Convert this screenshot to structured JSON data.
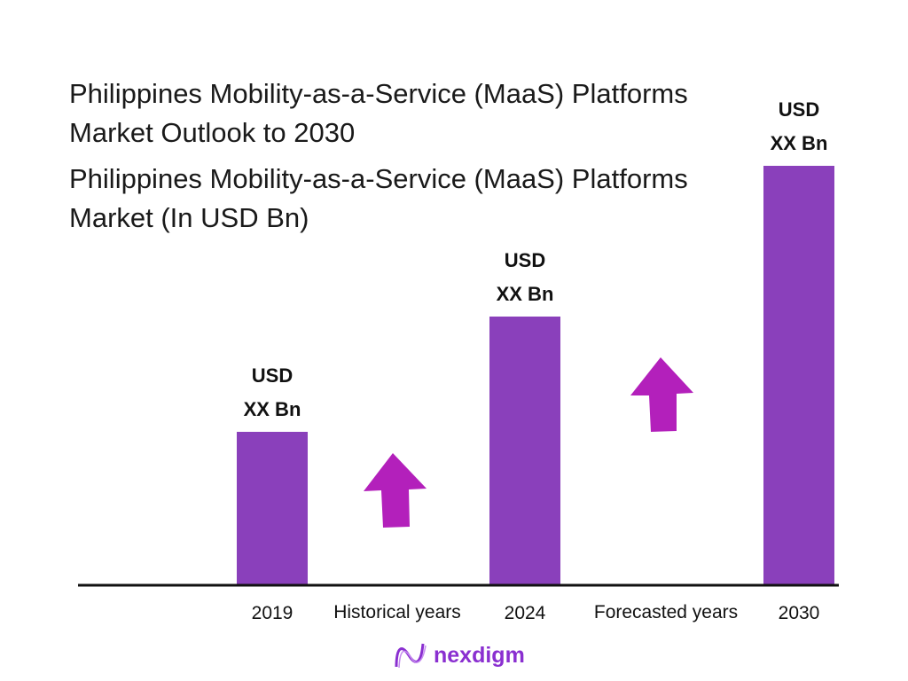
{
  "chart_data": {
    "type": "bar",
    "title": "Philippines Mobility-as-a-Service (MaaS) Platforms Market Outlook to 2030",
    "subtitle": "Philippines Mobility-as-a-Service (MaaS) Platforms Market (In USD Bn)",
    "categories": [
      "2019",
      "2024",
      "2030"
    ],
    "values": [
      172,
      302,
      472
    ],
    "data_labels": [
      {
        "line1": "USD",
        "line2": "XX Bn"
      },
      {
        "line1": "USD",
        "line2": "XX Bn"
      },
      {
        "line1": "USD",
        "line2": "XX Bn"
      }
    ],
    "period_labels": [
      "Historical years",
      "Forecasted years"
    ],
    "ylim": [
      0,
      480
    ],
    "grid": false,
    "colors": {
      "bar": "#8A40BB",
      "arrow": "#B320BB",
      "axis": "#111111"
    }
  },
  "brand": {
    "name": "nexdigm",
    "color": "#8A2FD0"
  }
}
